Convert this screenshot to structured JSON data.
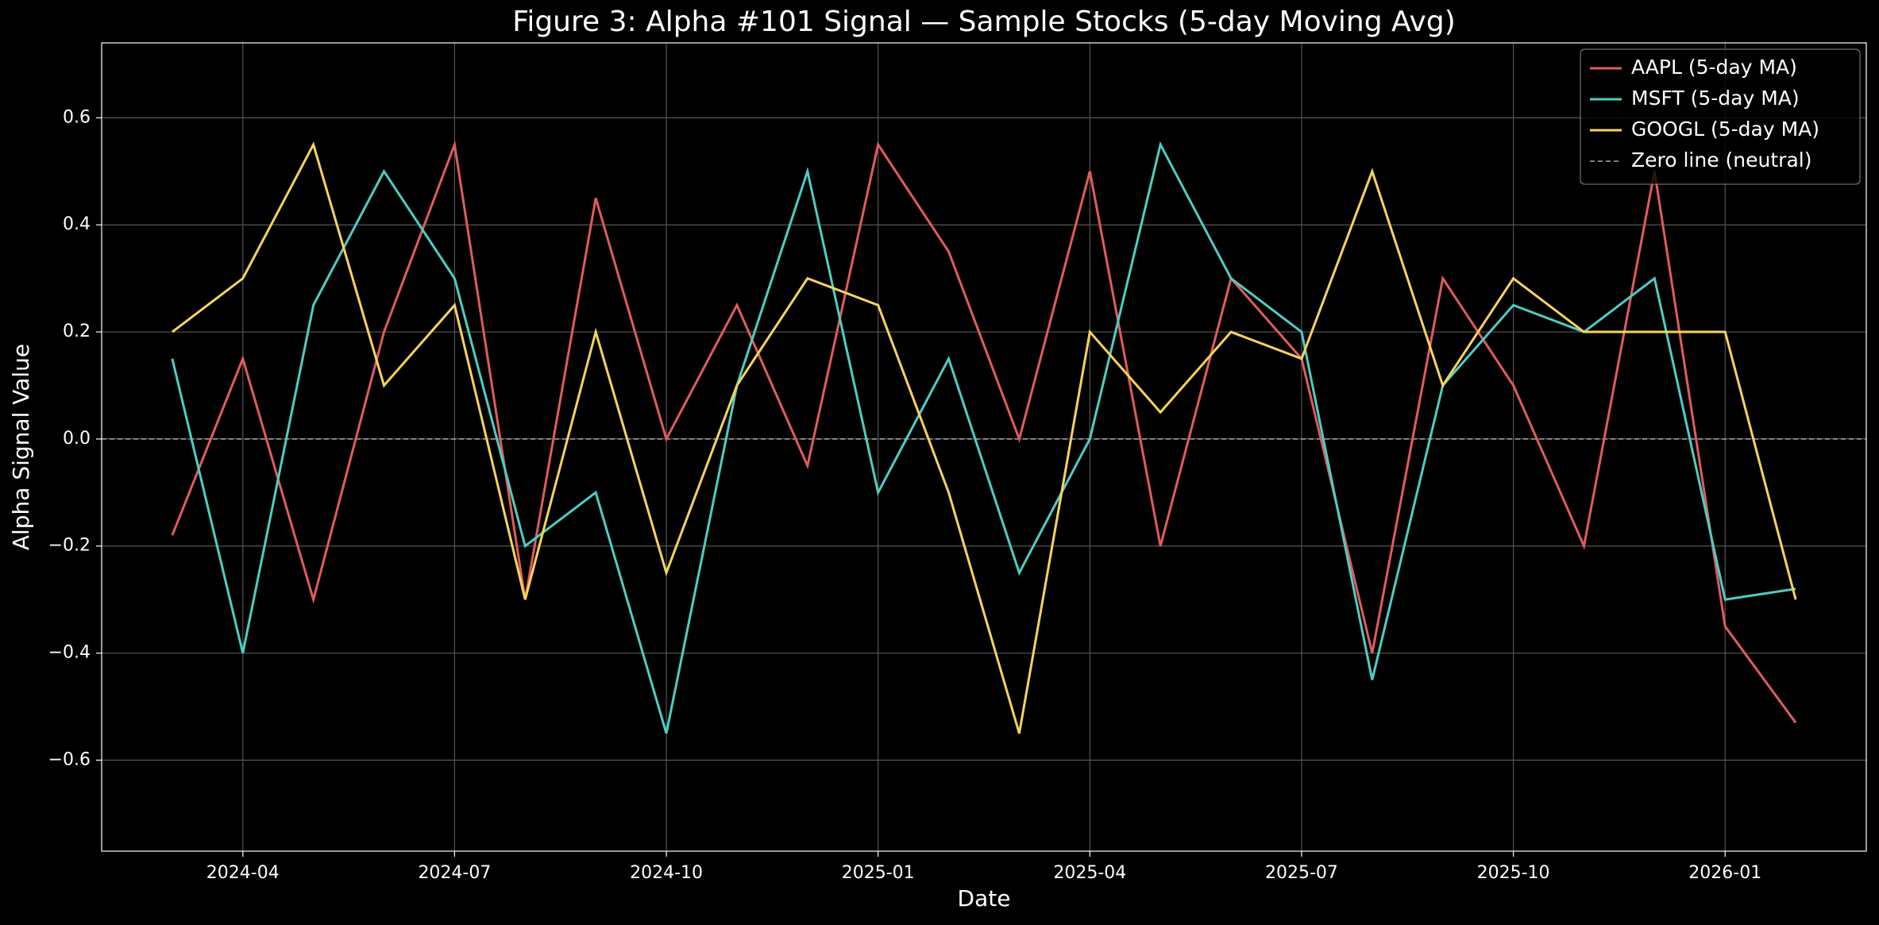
{
  "chart_data": {
    "type": "line",
    "title": "Figure 3: Alpha #101 Signal — Sample Stocks (5-day Moving Avg)",
    "x_label": "Date",
    "y_label": "Alpha Signal Value",
    "x": [
      "2024-03",
      "2024-04",
      "2024-05",
      "2024-06",
      "2024-07",
      "2024-08",
      "2024-09",
      "2024-10",
      "2024-11",
      "2024-12",
      "2025-01",
      "2025-02",
      "2025-03",
      "2025-04",
      "2025-05",
      "2025-06",
      "2025-07",
      "2025-08",
      "2025-09",
      "2025-10",
      "2025-11",
      "2025-12",
      "2026-01",
      "2026-02"
    ],
    "series": [
      {
        "name": "AAPL (5-day MA)",
        "color": "#e05c5c",
        "values": [
          -0.18,
          0.15,
          -0.3,
          0.2,
          0.55,
          -0.3,
          0.45,
          0.0,
          0.25,
          -0.05,
          0.55,
          0.35,
          0.0,
          0.5,
          -0.2,
          0.3,
          0.15,
          -0.4,
          0.3,
          0.1,
          -0.2,
          0.5,
          -0.35,
          -0.53
        ]
      },
      {
        "name": "MSFT (5-day MA)",
        "color": "#4ecdc4",
        "values": [
          0.15,
          -0.4,
          0.25,
          0.5,
          0.3,
          -0.2,
          -0.1,
          -0.55,
          0.1,
          0.5,
          -0.1,
          0.15,
          -0.25,
          0.0,
          0.55,
          0.3,
          0.2,
          -0.45,
          0.1,
          0.25,
          0.2,
          0.3,
          -0.3,
          -0.28
        ]
      },
      {
        "name": "GOOGL (5-day MA)",
        "color": "#f7d35c",
        "values": [
          0.2,
          0.3,
          0.55,
          0.1,
          0.25,
          -0.3,
          0.2,
          -0.25,
          0.1,
          0.3,
          0.25,
          -0.1,
          -0.55,
          0.2,
          0.05,
          0.2,
          0.15,
          0.5,
          0.1,
          0.3,
          0.2,
          0.2,
          0.2,
          -0.3
        ]
      }
    ],
    "reference_line": {
      "name": "Zero line (neutral)",
      "value": 0,
      "color": "#aaaaaa"
    },
    "xlim": [
      "2024-02",
      "2026-03"
    ],
    "xticks": [
      "2024-04",
      "2024-07",
      "2024-10",
      "2025-01",
      "2025-04",
      "2025-07",
      "2025-10",
      "2026-01"
    ],
    "ylim": [
      -0.77,
      0.74
    ],
    "yticks": [
      {
        "value": -0.6,
        "label": "−0.6"
      },
      {
        "value": -0.4,
        "label": "−0.4"
      },
      {
        "value": -0.2,
        "label": "−0.2"
      },
      {
        "value": 0,
        "label": "0.0"
      },
      0.2,
      0.4,
      0.6
    ],
    "grid": true,
    "legend": "upper right"
  }
}
